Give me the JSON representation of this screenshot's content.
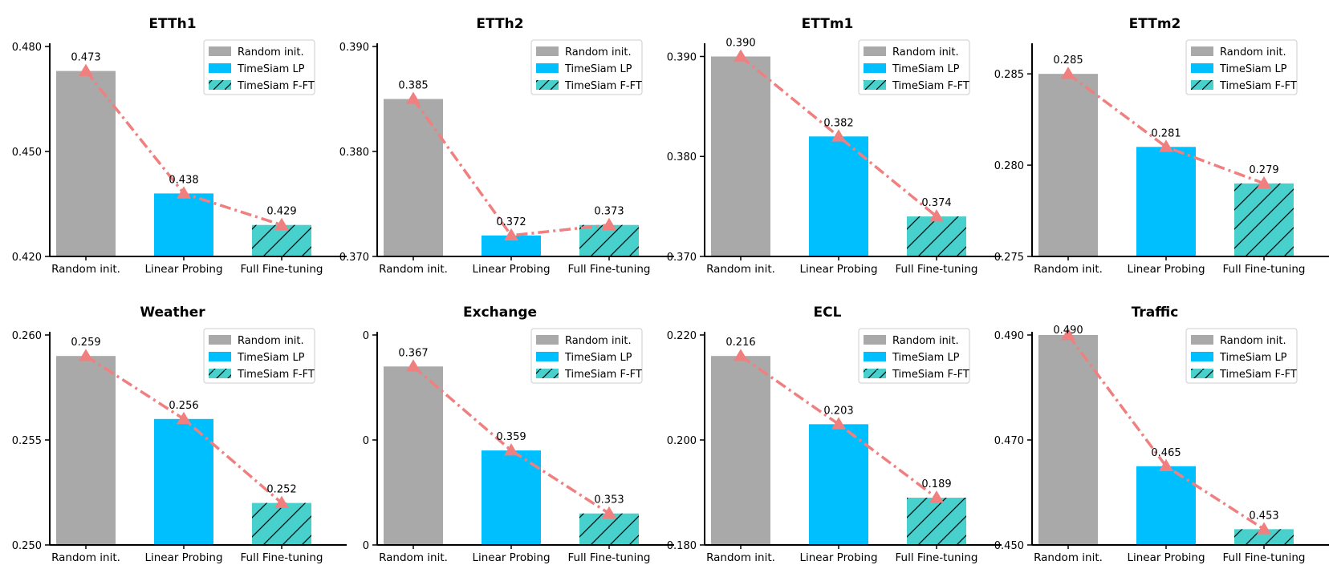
{
  "colors": {
    "random": "#a9a9a9",
    "lp": "#00bfff",
    "fft": "#48d1cc",
    "trend": "#f08080",
    "axis": "#000000"
  },
  "chart_data": [
    {
      "type": "bar",
      "title": "ETTh1",
      "categories": [
        "Random init.",
        "Linear Probing",
        "Full Fine-tuning"
      ],
      "values": [
        0.473,
        0.438,
        0.429
      ],
      "labels": [
        "0.473",
        "0.438",
        "0.429"
      ],
      "ylim": [
        0.42,
        0.48
      ],
      "yticks": [
        0.42,
        0.45,
        0.48
      ],
      "ytick_labels": [
        "0.420",
        "0.450",
        "0.480"
      ],
      "legend": [
        "Random init.",
        "TimeSiam LP",
        "TimeSiam F-FT"
      ],
      "legend_position": "top-right"
    },
    {
      "type": "bar",
      "title": "ETTh2",
      "categories": [
        "Random init.",
        "Linear Probing",
        "Full Fine-tuning"
      ],
      "values": [
        0.385,
        0.372,
        0.373
      ],
      "labels": [
        "0.385",
        "0.372",
        "0.373"
      ],
      "ylim": [
        0.37,
        0.39
      ],
      "yticks": [
        0.37,
        0.38,
        0.39
      ],
      "ytick_labels": [
        "0.370",
        "0.380",
        "0.390"
      ],
      "legend": [
        "Random init.",
        "TimeSiam LP",
        "TimeSiam F-FT"
      ],
      "legend_position": "top-right"
    },
    {
      "type": "bar",
      "title": "ETTm1",
      "categories": [
        "Random init.",
        "Linear Probing",
        "Full Fine-tuning"
      ],
      "values": [
        0.39,
        0.382,
        0.374
      ],
      "labels": [
        "0.390",
        "0.382",
        "0.374"
      ],
      "ylim": [
        0.37,
        0.391
      ],
      "yticks": [
        0.37,
        0.38,
        0.39
      ],
      "ytick_labels": [
        "0.370",
        "0.380",
        "0.390"
      ],
      "legend": [
        "Random init.",
        "TimeSiam LP",
        "TimeSiam F-FT"
      ],
      "legend_position": "top-right"
    },
    {
      "type": "bar",
      "title": "ETTm2",
      "categories": [
        "Random init.",
        "Linear Probing",
        "Full Fine-tuning"
      ],
      "values": [
        0.285,
        0.281,
        0.279
      ],
      "labels": [
        "0.285",
        "0.281",
        "0.279"
      ],
      "ylim": [
        0.275,
        0.2865
      ],
      "yticks": [
        0.275,
        0.28,
        0.285
      ],
      "ytick_labels": [
        "0.275",
        "0.280",
        "0.285"
      ],
      "legend": [
        "Random init.",
        "TimeSiam LP",
        "TimeSiam F-FT"
      ],
      "legend_position": "top-right"
    },
    {
      "type": "bar",
      "title": "Weather",
      "categories": [
        "Random init.",
        "Linear Probing",
        "Full Fine-tuning"
      ],
      "values": [
        0.259,
        0.256,
        0.252
      ],
      "labels": [
        "0.259",
        "0.256",
        "0.252"
      ],
      "ylim": [
        0.25,
        0.26
      ],
      "yticks": [
        0.25,
        0.255,
        0.26
      ],
      "ytick_labels": [
        "0.250",
        "0.255",
        "0.260"
      ],
      "legend": [
        "Random init.",
        "TimeSiam LP",
        "TimeSiam F-FT"
      ],
      "legend_position": "top-right"
    },
    {
      "type": "bar",
      "title": "Exchange",
      "categories": [
        "Random init.",
        "Linear Probing",
        "Full Fine-tuning"
      ],
      "values": [
        0.367,
        0.359,
        0.353
      ],
      "labels": [
        "0.367",
        "0.359",
        "0.353"
      ],
      "ylim": [
        0.35,
        0.37
      ],
      "yticks": [
        0.35,
        0.36,
        0.37
      ],
      "ytick_labels": [
        "0",
        "0",
        "0"
      ],
      "legend": [
        "Random init.",
        "TimeSiam LP",
        "TimeSiam F-FT"
      ],
      "legend_position": "top-right"
    },
    {
      "type": "bar",
      "title": "ECL",
      "categories": [
        "Random init.",
        "Linear Probing",
        "Full Fine-tuning"
      ],
      "values": [
        0.216,
        0.203,
        0.189
      ],
      "labels": [
        "0.216",
        "0.203",
        "0.189"
      ],
      "ylim": [
        0.18,
        0.22
      ],
      "yticks": [
        0.18,
        0.2,
        0.22
      ],
      "ytick_labels": [
        "0.180",
        "0.200",
        "0.220"
      ],
      "legend": [
        "Random init.",
        "TimeSiam LP",
        "TimeSiam F-FT"
      ],
      "legend_position": "top-right"
    },
    {
      "type": "bar",
      "title": "Traffic",
      "categories": [
        "Random init.",
        "Linear Probing",
        "Full Fine-tuning"
      ],
      "values": [
        0.49,
        0.465,
        0.453
      ],
      "labels": [
        "0.490",
        "0.465",
        "0.453"
      ],
      "ylim": [
        0.45,
        0.49
      ],
      "yticks": [
        0.45,
        0.47,
        0.49
      ],
      "ytick_labels": [
        "0.450",
        "0.470",
        "0.490"
      ],
      "legend": [
        "Random init.",
        "TimeSiam LP",
        "TimeSiam F-FT"
      ],
      "legend_position": "top-right"
    }
  ]
}
